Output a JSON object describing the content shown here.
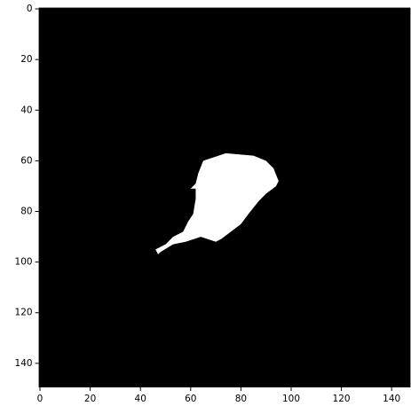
{
  "chart_data": {
    "type": "image",
    "background": "#000000",
    "color": "#ffffff",
    "xlim": [
      -0.5,
      147.5
    ],
    "ylim": [
      149.5,
      -0.5
    ],
    "xticks": [
      0,
      20,
      40,
      60,
      80,
      100,
      120,
      140
    ],
    "yticks": [
      0,
      20,
      40,
      60,
      80,
      100,
      120,
      140
    ],
    "polygon": {
      "x": [
        65,
        74,
        85,
        90,
        93,
        95,
        94,
        90,
        87,
        83,
        80,
        76,
        72,
        70,
        67,
        64,
        58,
        53,
        48,
        47,
        46,
        50,
        53,
        57,
        59,
        61,
        62,
        62,
        60,
        62,
        63
      ],
      "y": [
        60,
        57,
        58,
        60,
        63,
        68,
        70,
        73,
        76,
        81,
        85,
        88,
        91,
        92,
        91,
        90,
        92,
        93,
        96,
        97,
        95,
        93,
        90,
        88,
        84,
        81,
        75,
        71,
        71,
        69,
        65
      ]
    }
  }
}
